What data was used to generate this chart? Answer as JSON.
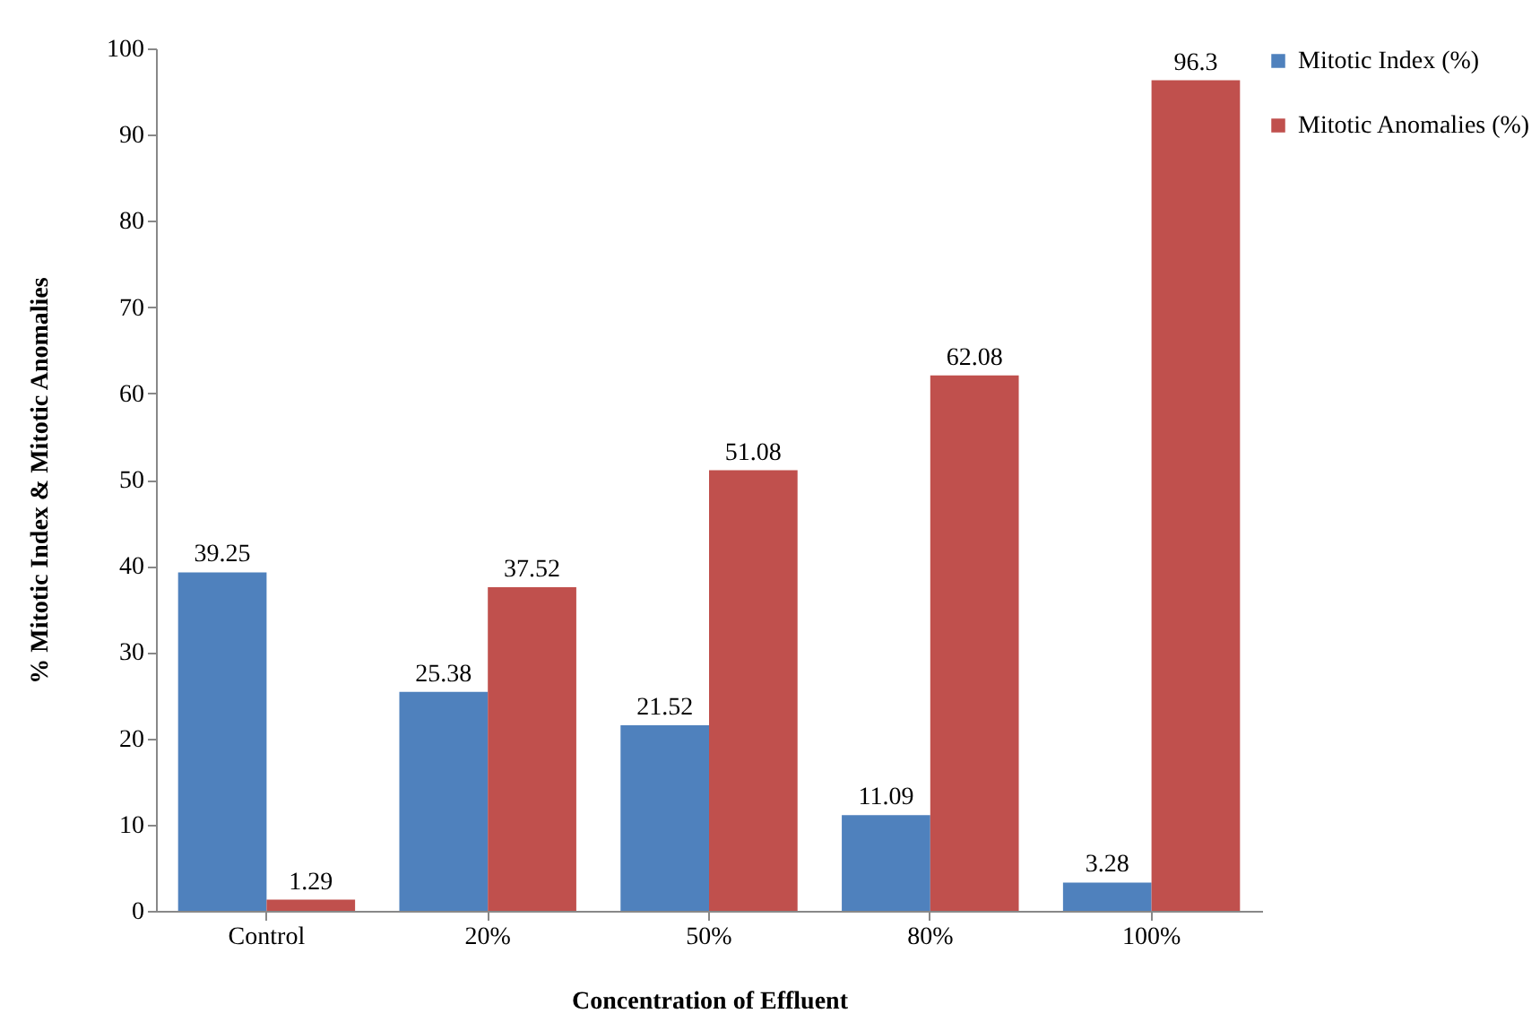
{
  "chart_data": {
    "type": "bar",
    "xlabel": "Concentration of Effluent",
    "ylabel": "% Mitotic Index & Mitotic Anomalies",
    "categories": [
      "Control",
      "20%",
      "50%",
      "80%",
      "100%"
    ],
    "series": [
      {
        "name": "Mitotic Index (%)",
        "color": "#4f81bd",
        "values": [
          39.25,
          25.38,
          21.52,
          11.09,
          3.28
        ]
      },
      {
        "name": "Mitotic Anomalies (%)",
        "color": "#c0504d",
        "values": [
          1.29,
          37.52,
          51.08,
          62.08,
          96.3
        ]
      }
    ],
    "ylim": [
      0,
      100
    ],
    "yticks": [
      0,
      10,
      20,
      30,
      40,
      50,
      60,
      70,
      80,
      90,
      100
    ],
    "grid": false,
    "legend": "right",
    "data_labels": true
  }
}
